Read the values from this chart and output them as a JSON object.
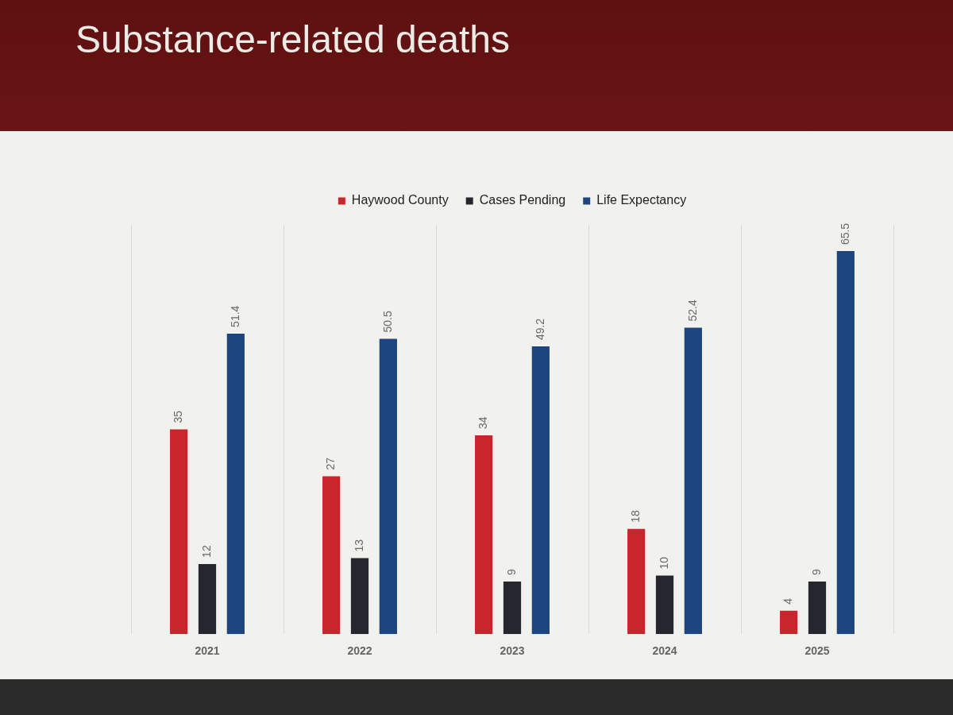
{
  "chart_data": {
    "type": "bar",
    "title": "Substance-related deaths",
    "categories": [
      "2021",
      "2022",
      "2023",
      "2024",
      "2025"
    ],
    "series": [
      {
        "name": "Haywood County",
        "color": "#c8262c",
        "values": [
          35,
          27,
          34,
          18,
          4
        ]
      },
      {
        "name": "Cases Pending",
        "color": "#26262e",
        "values": [
          12,
          13,
          9,
          10,
          9
        ]
      },
      {
        "name": "Life Expectancy",
        "color": "#1d4580",
        "values": [
          51.4,
          50.5,
          49.2,
          52.4,
          65.5
        ]
      }
    ],
    "data_labels": true,
    "legend": "top",
    "grid": "x"
  }
}
